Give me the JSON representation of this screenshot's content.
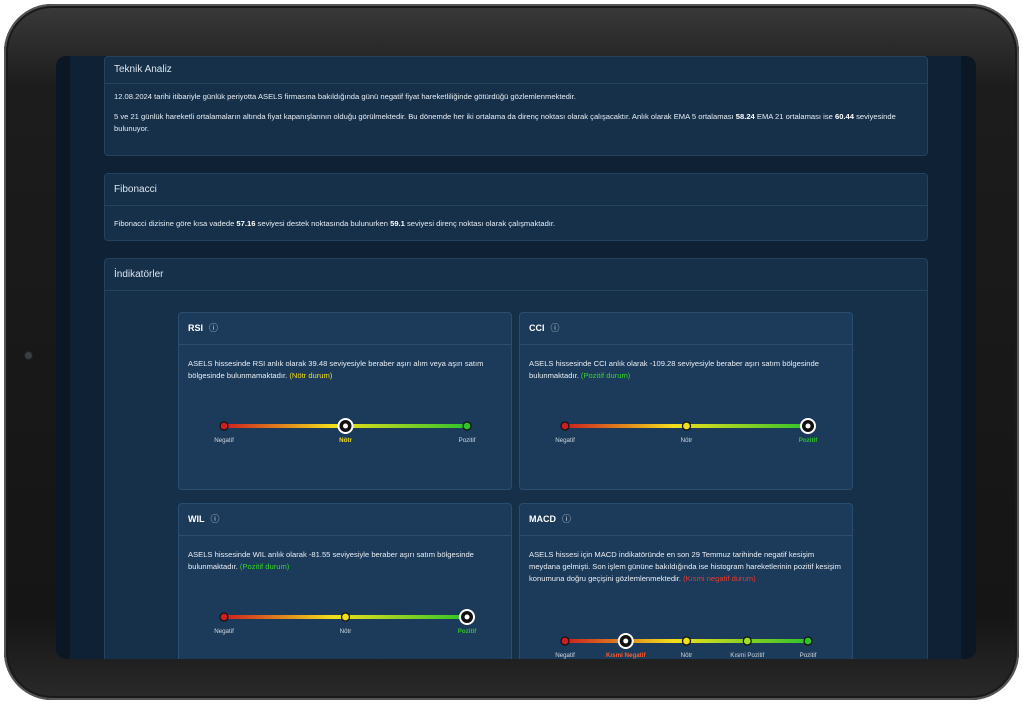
{
  "colors": {
    "negative": "#cc1f1f",
    "neutral": "#f2df1c",
    "positive": "#2fc32a",
    "partial_negative": "#ff5a2a"
  },
  "teknik": {
    "title": "Teknik Analiz",
    "p1": "12.08.2024 tarihi itibariyle günlük periyotta ASELS firmasına bakıldığında günü negatif fiyat hareketliliğinde götürdüğü gözlemlenmektedir.",
    "p2_a": "5 ve 21 günlük hareketli ortalamaların altında fiyat kapanışlarının olduğu görülmektedir. Bu dönemde her iki ortalama da direnç noktası olarak çalışacaktır. Anlık olarak EMA 5 ortalaması ",
    "ema5": "58.24",
    "p2_b": " EMA 21 ortalaması ise ",
    "ema21": "60.44",
    "p2_c": " seviyesinde bulunuyor."
  },
  "fibonacci": {
    "title": "Fibonacci",
    "t_a": "Fibonacci dizisine göre kısa vadede ",
    "support": "57.16",
    "t_b": " seviyesi destek noktasında bulunurken ",
    "resistance": "59.1",
    "t_c": " seviyesi direnç noktası olarak çalışmaktadır."
  },
  "indicators_title": "İndikatörler",
  "indicators": [
    {
      "id": "rsi",
      "title": "RSI",
      "info_icon": "info-circle-icon",
      "text": "ASELS hissesinde RSI anlık olarak 39.48 seviyesiyle beraber aşırı alım veya aşırı satım bölgesinde bulunmamaktadır. ",
      "status": "(Nötr durum)",
      "status_color": "yellow",
      "labels": [
        "Negatif",
        "Nötr",
        "Pozitif"
      ],
      "active": 1,
      "active_color": "#f2df1c"
    },
    {
      "id": "cci",
      "title": "CCI",
      "info_icon": "info-circle-icon",
      "text": "ASELS hissesinde CCI anlık olarak -109.28 seviyesiyle beraber aşırı satım bölgesinde bulunmaktadır. ",
      "status": "(Pozitif durum)",
      "status_color": "green",
      "labels": [
        "Negatif",
        "Nötr",
        "Pozitif"
      ],
      "active": 2,
      "active_color": "#2fc32a"
    },
    {
      "id": "wil",
      "title": "WIL",
      "info_icon": "info-circle-icon",
      "text": "ASELS hissesinde WIL anlık olarak -81.55 seviyesiyle beraber aşırı satım bölgesinde bulunmaktadır. ",
      "status": "(Pozitif durum)",
      "status_color": "green",
      "labels": [
        "Negatif",
        "Nötr",
        "Pozitif"
      ],
      "active": 2,
      "active_color": "#2fc32a"
    },
    {
      "id": "macd",
      "title": "MACD",
      "info_icon": "info-circle-icon",
      "text": "ASELS hissesi için MACD indikatöründe en son 29 Temmuz tarihinde negatif kesişim meydana gelmişti. Son işlem gününe bakıldığında ise histogram hareketlerinin pozitif kesişim konumuna doğru geçişini gözlemlenmektedir. ",
      "status": "(Kısmi negatif durum)",
      "status_color": "red",
      "labels": [
        "Negatif",
        "Kısmi Negatif",
        "Nötr",
        "Kısmi Pozitif",
        "Pozitif"
      ],
      "active": 1,
      "active_color": "#ff5a2a"
    }
  ]
}
